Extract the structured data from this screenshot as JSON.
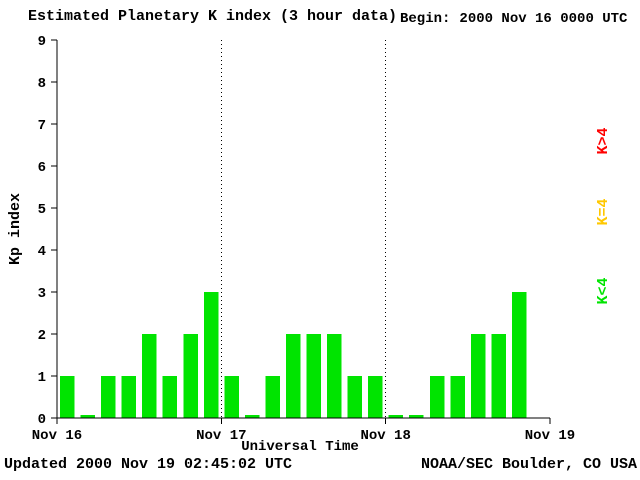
{
  "title": "Estimated Planetary K index (3 hour data)",
  "begin": {
    "label": "Begin:",
    "value": "2000 Nov 16 0000 UTC"
  },
  "legend": [
    {
      "label": "K>4",
      "color": "#ff0000"
    },
    {
      "label": "K=4",
      "color": "#ffc800"
    },
    {
      "label": "K<4",
      "color": "#00e400"
    }
  ],
  "footer": {
    "updated": "Updated 2000 Nov 19 02:45:02 UTC",
    "source": "NOAA/SEC Boulder, CO USA"
  },
  "chart_data": {
    "type": "bar",
    "title": "Estimated Planetary K index (3 hour data)",
    "xlabel": "Universal Time",
    "ylabel": "Kp index",
    "ylim": [
      0,
      9
    ],
    "yticks": [
      0,
      1,
      2,
      3,
      4,
      5,
      6,
      7,
      8,
      9
    ],
    "x_day_labels": [
      "Nov 16",
      "Nov 17",
      "Nov 18",
      "Nov 19"
    ],
    "values_per_day": 8,
    "bar_color": "#00e400",
    "grid": "dotted vertical lines at day boundaries",
    "values": [
      1,
      0,
      1,
      1,
      2,
      1,
      2,
      3,
      1,
      0,
      1,
      2,
      2,
      2,
      1,
      1,
      0,
      0,
      1,
      1,
      2,
      2,
      3,
      null
    ]
  }
}
